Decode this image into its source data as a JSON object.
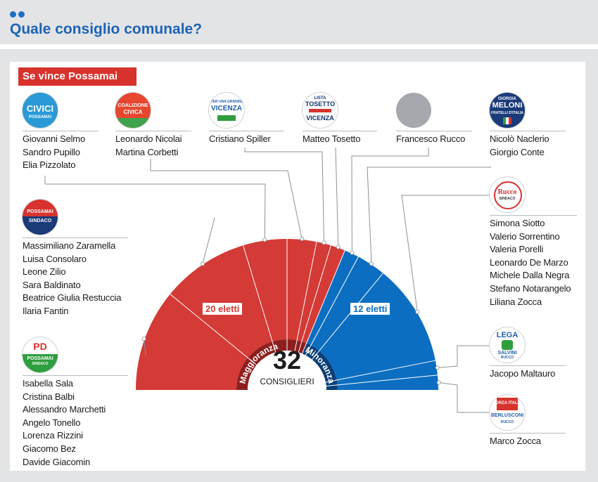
{
  "header": {
    "title": "Quale consiglio comunale?"
  },
  "scenario": {
    "label": "Se vince Possamai"
  },
  "colors": {
    "majority": "#d43a36",
    "minority": "#0c6ec1",
    "majority_dark": "#8e1f1f",
    "minority_dark": "#0a3f78",
    "accent": "#1d63b6",
    "label_bg": "#d8322d"
  },
  "chart_data": {
    "type": "pie",
    "subtype": "parliament-semicircle",
    "total_value": "32",
    "total_label": "CONSIGLIERI",
    "groups": [
      {
        "label": "Maggioranza",
        "seats": 20,
        "seats_label": "20 eletti"
      },
      {
        "label": "Minoranza",
        "seats": 12,
        "seats_label": "12 eletti"
      }
    ],
    "parties": [
      {
        "name": "Possamai Sindaco",
        "group": "Maggioranza",
        "seats": 7,
        "logo": "possamai-pd-logo-icon"
      },
      {
        "name": "Possamai Sindaco",
        "group": "Maggioranza",
        "seats": 6,
        "logo": "possamai-sindaco-logo-icon"
      },
      {
        "name": "Civici",
        "group": "Maggioranza",
        "seats": 3,
        "logo": "civici-logo-icon"
      },
      {
        "name": "Coalizione Civica",
        "group": "Maggioranza",
        "seats": 2,
        "logo": "coalizione-civica-logo-icon"
      },
      {
        "name": "Vicenza",
        "group": "Maggioranza",
        "seats": 1,
        "logo": "per-una-grande-vicenza-logo-icon"
      },
      {
        "name": "Lista Tosetto",
        "group": "Maggioranza",
        "seats": 1,
        "logo": "lista-tosetto-logo-icon"
      },
      {
        "name": "Francesco Rucco",
        "group": "Minoranza",
        "seats": 1,
        "logo": "grey-circle-icon"
      },
      {
        "name": "Meloni Fratelli d'Italia",
        "group": "Minoranza",
        "seats": 2,
        "logo": "fratelli-italia-logo-icon"
      },
      {
        "name": "Rucco Sindaco",
        "group": "Minoranza",
        "seats": 7,
        "logo": "rucco-sindaco-logo-icon"
      },
      {
        "name": "Lega Salvini",
        "group": "Minoranza",
        "seats": 1,
        "logo": "lega-logo-icon"
      },
      {
        "name": "Forza Italia Berlusconi",
        "group": "Minoranza",
        "seats": 1,
        "logo": "forza-italia-logo-icon"
      }
    ]
  },
  "parties": {
    "civici": {
      "logo_text": "CIVICI",
      "logo_sub": "POSSAMAI",
      "members": [
        "Giovanni Selmo",
        "Sandro Pupillo",
        "Elia Pizzolato"
      ]
    },
    "coalizione": {
      "logo_text": "COALIZIONE",
      "logo_text2": "CIVICA",
      "members": [
        "Leonardo Nicolai",
        "Martina Corbetti"
      ]
    },
    "vicenza": {
      "logo_top": "PER UNA GRANDE",
      "logo_text": "VICENZA",
      "members": [
        "Cristiano Spiller"
      ]
    },
    "tosetto": {
      "logo_top": "LISTA",
      "logo_text": "TOSETTO",
      "logo_sub": "VICENZA",
      "members": [
        "Matteo Tosetto"
      ]
    },
    "rucco_fr": {
      "members": [
        "Francesco Rucco"
      ]
    },
    "meloni": {
      "logo_top": "GIORGIA",
      "logo_text": "MELONI",
      "logo_sub": "FRATELLI D'ITALIA",
      "members": [
        "Nicolò Naclerio",
        "Giorgio Conte"
      ]
    },
    "possamai": {
      "logo_text": "POSSAMAI",
      "logo_sub": "SINDACO",
      "members": [
        "Massimiliano Zaramella",
        "Luisa Consolaro",
        "Leone Zilio",
        "Sara Baldinato",
        "Beatrice Giulia Restuccia",
        "Ilaria Fantin"
      ]
    },
    "pd": {
      "logo_text": "PD",
      "logo_sub": "POSSAMAI",
      "logo_sub2": "SINDACO",
      "members": [
        "Isabella Sala",
        "Cristina Balbi",
        "Alessandro Marchetti",
        "Angelo Tonello",
        "Lorenza Rizzini",
        "Giacomo Bez",
        "Davide Giacomin"
      ]
    },
    "rucco": {
      "logo_text": "Rucco",
      "logo_sub": "SINDACO",
      "members": [
        "Simona Siotto",
        "Valerio Sorrentino",
        "Valeria Porelli",
        "Leonardo De Marzo",
        "Michele Dalla Negra",
        "Stefano Notarangelo",
        "Liliana Zocca"
      ]
    },
    "lega": {
      "logo_text": "LEGA",
      "logo_sub": "SALVINI",
      "logo_sub2": "RUCCO",
      "members": [
        "Jacopo Maltauro"
      ]
    },
    "forza": {
      "logo_text": "FORZA ITALIA",
      "logo_sub": "BERLUSCONI",
      "logo_sub2": "RUCCO",
      "members": [
        "Marco Zocca"
      ]
    }
  }
}
